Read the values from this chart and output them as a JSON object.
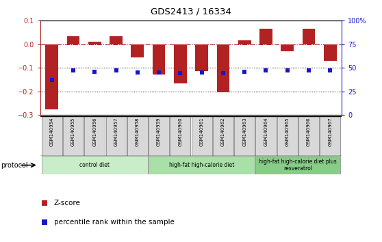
{
  "title": "GDS2413 / 16334",
  "samples": [
    "GSM140954",
    "GSM140955",
    "GSM140956",
    "GSM140957",
    "GSM140958",
    "GSM140959",
    "GSM140960",
    "GSM140961",
    "GSM140962",
    "GSM140963",
    "GSM140964",
    "GSM140965",
    "GSM140966",
    "GSM140967"
  ],
  "zscore": [
    -0.275,
    0.035,
    0.01,
    0.033,
    -0.055,
    -0.13,
    -0.165,
    -0.115,
    -0.205,
    0.017,
    0.065,
    -0.03,
    0.065,
    -0.07
  ],
  "percentile_pct": [
    37,
    47,
    46,
    47,
    45,
    45,
    44,
    45,
    44,
    46,
    47,
    47,
    47,
    47
  ],
  "ylim": [
    -0.3,
    0.1
  ],
  "yticks": [
    -0.3,
    -0.2,
    -0.1,
    0.0,
    0.1
  ],
  "right_yticks": [
    0,
    25,
    50,
    75,
    100
  ],
  "right_ylim": [
    0,
    100
  ],
  "dotted_lines": [
    -0.1,
    -0.2
  ],
  "bar_color": "#b22222",
  "dot_color": "#1515cc",
  "groups": [
    {
      "label": "control diet",
      "start": 0,
      "end": 4,
      "color": "#c8edc8"
    },
    {
      "label": "high-fat high-calorie diet",
      "start": 5,
      "end": 9,
      "color": "#a8e0a8"
    },
    {
      "label": "high-fat high-calorie diet plus\nresveratrol",
      "start": 10,
      "end": 13,
      "color": "#88cc88"
    }
  ],
  "protocol_label": "protocol",
  "legend_items": [
    {
      "label": "Z-score",
      "color": "#b22222"
    },
    {
      "label": "percentile rank within the sample",
      "color": "#1515cc"
    }
  ]
}
